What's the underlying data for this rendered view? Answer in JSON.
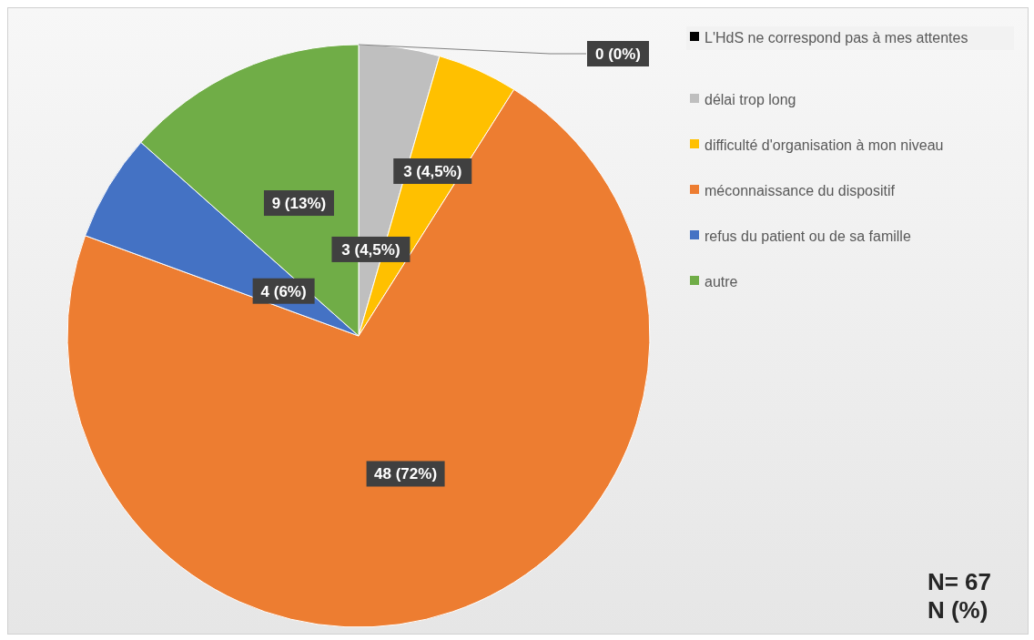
{
  "chart_data": {
    "type": "pie",
    "categories": [
      "L'HdS ne correspond pas à mes attentes",
      "délai trop long",
      "difficulté d'organisation à mon niveau",
      "méconnaissance du dispositif",
      "refus du patient ou de sa famille",
      "autre"
    ],
    "values": [
      0,
      3,
      3,
      48,
      4,
      9
    ],
    "value_labels": [
      "0 (0%)",
      "3 (4,5%)",
      "3 (4,5%)",
      "48 (72%)",
      "4 (6%)",
      "9 (13%)"
    ],
    "colors": [
      "#000000",
      "#bfbfbf",
      "#ffc000",
      "#ed7d31",
      "#4472c4",
      "#70ad47"
    ],
    "legend": "right",
    "annotations": [
      "N= 67",
      "N (%)"
    ]
  }
}
